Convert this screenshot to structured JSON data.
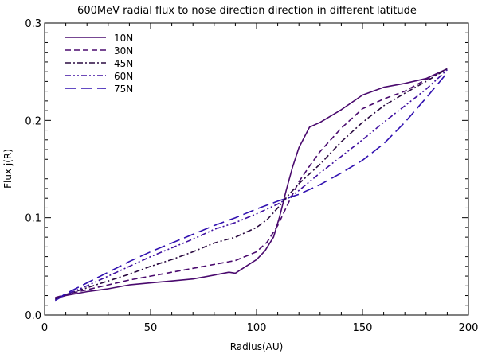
{
  "chart_data": {
    "type": "line",
    "title": "600MeV radial flux to nose direction direction in different latitude",
    "xlabel": "Radius(AU)",
    "ylabel": "Flux j(R)",
    "xlim": [
      0,
      200
    ],
    "ylim": [
      0.0,
      0.3
    ],
    "x_ticks": [
      0,
      50,
      100,
      150,
      200
    ],
    "y_ticks": [
      0.0,
      0.1,
      0.2,
      0.3
    ],
    "x_tick_labels": [
      "0",
      "50",
      "100",
      "150",
      "200"
    ],
    "y_tick_labels": [
      "0.0",
      "0.1",
      "0.2",
      "0.3"
    ],
    "grid": false,
    "legend_position": "top-left",
    "series": [
      {
        "name": "10N",
        "color": "#4a0a6e",
        "dash": "solid",
        "points": [
          [
            5,
            0.017
          ],
          [
            10,
            0.02
          ],
          [
            20,
            0.024
          ],
          [
            30,
            0.027
          ],
          [
            40,
            0.031
          ],
          [
            50,
            0.033
          ],
          [
            60,
            0.035
          ],
          [
            70,
            0.037
          ],
          [
            80,
            0.041
          ],
          [
            87,
            0.044
          ],
          [
            90,
            0.043
          ],
          [
            95,
            0.05
          ],
          [
            100,
            0.057
          ],
          [
            104,
            0.066
          ],
          [
            108,
            0.08
          ],
          [
            111,
            0.102
          ],
          [
            114,
            0.128
          ],
          [
            117,
            0.152
          ],
          [
            120,
            0.172
          ],
          [
            125,
            0.193
          ],
          [
            130,
            0.198
          ],
          [
            140,
            0.211
          ],
          [
            150,
            0.226
          ],
          [
            160,
            0.234
          ],
          [
            170,
            0.238
          ],
          [
            180,
            0.243
          ],
          [
            190,
            0.253
          ]
        ]
      },
      {
        "name": "30N",
        "color": "#4a0a6e",
        "dash": "dashed",
        "points": [
          [
            5,
            0.018
          ],
          [
            10,
            0.021
          ],
          [
            20,
            0.026
          ],
          [
            30,
            0.031
          ],
          [
            40,
            0.036
          ],
          [
            50,
            0.04
          ],
          [
            60,
            0.044
          ],
          [
            70,
            0.048
          ],
          [
            80,
            0.052
          ],
          [
            90,
            0.056
          ],
          [
            100,
            0.065
          ],
          [
            105,
            0.075
          ],
          [
            110,
            0.092
          ],
          [
            115,
            0.115
          ],
          [
            120,
            0.137
          ],
          [
            125,
            0.153
          ],
          [
            130,
            0.168
          ],
          [
            140,
            0.192
          ],
          [
            150,
            0.212
          ],
          [
            160,
            0.222
          ],
          [
            170,
            0.23
          ],
          [
            180,
            0.242
          ],
          [
            190,
            0.253
          ]
        ]
      },
      {
        "name": "45N",
        "color": "#2a0a40",
        "dash": "dashdot",
        "points": [
          [
            5,
            0.016
          ],
          [
            10,
            0.021
          ],
          [
            20,
            0.028
          ],
          [
            30,
            0.035
          ],
          [
            40,
            0.042
          ],
          [
            50,
            0.05
          ],
          [
            60,
            0.057
          ],
          [
            70,
            0.065
          ],
          [
            80,
            0.074
          ],
          [
            90,
            0.08
          ],
          [
            100,
            0.09
          ],
          [
            105,
            0.098
          ],
          [
            110,
            0.11
          ],
          [
            115,
            0.123
          ],
          [
            120,
            0.135
          ],
          [
            130,
            0.155
          ],
          [
            140,
            0.178
          ],
          [
            150,
            0.198
          ],
          [
            160,
            0.215
          ],
          [
            170,
            0.228
          ],
          [
            180,
            0.24
          ],
          [
            190,
            0.253
          ]
        ]
      },
      {
        "name": "60N",
        "color": "#3f0fa0",
        "dash": "dashdotdot",
        "points": [
          [
            5,
            0.015
          ],
          [
            10,
            0.021
          ],
          [
            20,
            0.03
          ],
          [
            30,
            0.04
          ],
          [
            40,
            0.05
          ],
          [
            50,
            0.06
          ],
          [
            60,
            0.069
          ],
          [
            70,
            0.078
          ],
          [
            80,
            0.088
          ],
          [
            90,
            0.095
          ],
          [
            100,
            0.104
          ],
          [
            110,
            0.114
          ],
          [
            115,
            0.12
          ],
          [
            120,
            0.128
          ],
          [
            130,
            0.146
          ],
          [
            140,
            0.163
          ],
          [
            150,
            0.18
          ],
          [
            160,
            0.198
          ],
          [
            170,
            0.215
          ],
          [
            180,
            0.232
          ],
          [
            190,
            0.252
          ]
        ]
      },
      {
        "name": "75N",
        "color": "#3010b0",
        "dash": "longdash",
        "points": [
          [
            5,
            0.015
          ],
          [
            10,
            0.022
          ],
          [
            20,
            0.033
          ],
          [
            30,
            0.044
          ],
          [
            40,
            0.055
          ],
          [
            50,
            0.065
          ],
          [
            60,
            0.074
          ],
          [
            70,
            0.083
          ],
          [
            80,
            0.092
          ],
          [
            90,
            0.1
          ],
          [
            100,
            0.109
          ],
          [
            110,
            0.117
          ],
          [
            120,
            0.124
          ],
          [
            130,
            0.134
          ],
          [
            140,
            0.146
          ],
          [
            150,
            0.159
          ],
          [
            160,
            0.176
          ],
          [
            170,
            0.198
          ],
          [
            180,
            0.223
          ],
          [
            190,
            0.249
          ]
        ]
      }
    ]
  }
}
